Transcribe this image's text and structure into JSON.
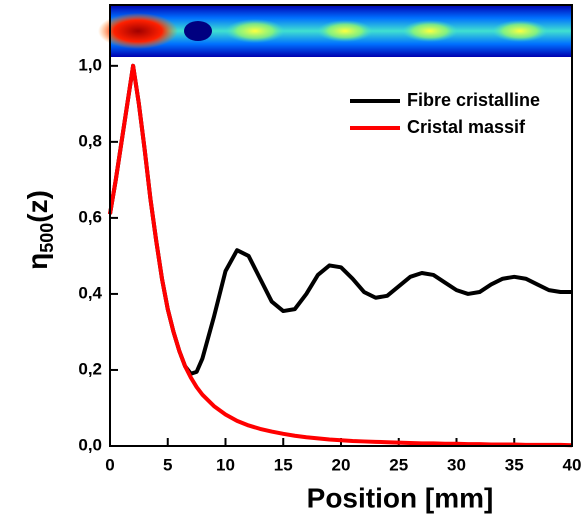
{
  "chart_data": {
    "type": "line",
    "xlabel": "Position  [mm]",
    "ylabel_symbol": "η",
    "ylabel_subscript": "500",
    "ylabel_suffix": "(z)",
    "x": [
      0,
      0.5,
      1,
      1.5,
      2,
      2.5,
      3,
      3.5,
      4,
      4.5,
      5,
      5.5,
      6,
      6.5,
      7,
      7.5,
      8,
      9,
      10,
      11,
      12,
      13,
      14,
      15,
      16,
      17,
      18,
      19,
      20,
      21,
      22,
      23,
      24,
      25,
      26,
      27,
      28,
      29,
      30,
      31,
      32,
      33,
      34,
      35,
      36,
      37,
      38,
      39,
      40
    ],
    "series": [
      {
        "name": "Fibre cristalline",
        "color": "#000000",
        "values": [
          0.61,
          0.7,
          0.8,
          0.9,
          1.0,
          0.9,
          0.78,
          0.65,
          0.54,
          0.44,
          0.36,
          0.3,
          0.25,
          0.21,
          0.19,
          0.195,
          0.23,
          0.34,
          0.46,
          0.515,
          0.5,
          0.44,
          0.38,
          0.355,
          0.36,
          0.4,
          0.45,
          0.475,
          0.47,
          0.44,
          0.405,
          0.39,
          0.395,
          0.42,
          0.445,
          0.455,
          0.45,
          0.43,
          0.41,
          0.4,
          0.405,
          0.425,
          0.44,
          0.445,
          0.44,
          0.425,
          0.41,
          0.405,
          0.405
        ]
      },
      {
        "name": "Cristal massif",
        "color": "#ff0000",
        "values": [
          0.61,
          0.7,
          0.8,
          0.9,
          1.0,
          0.9,
          0.78,
          0.65,
          0.54,
          0.44,
          0.36,
          0.3,
          0.25,
          0.21,
          0.18,
          0.155,
          0.135,
          0.105,
          0.083,
          0.066,
          0.054,
          0.045,
          0.038,
          0.032,
          0.027,
          0.023,
          0.02,
          0.017,
          0.015,
          0.013,
          0.012,
          0.011,
          0.01,
          0.009,
          0.008,
          0.007,
          0.007,
          0.006,
          0.006,
          0.005,
          0.005,
          0.004,
          0.004,
          0.004,
          0.003,
          0.003,
          0.003,
          0.003,
          0.002
        ]
      }
    ],
    "xlim": [
      0,
      40
    ],
    "xticks": [
      0,
      5,
      10,
      15,
      20,
      25,
      30,
      35,
      40
    ],
    "ylim": [
      0,
      1.16
    ],
    "yticks": [
      {
        "value": 0,
        "label": "0,0"
      },
      {
        "value": 0.2,
        "label": "0,2"
      },
      {
        "value": 0.4,
        "label": "0,4"
      },
      {
        "value": 0.6,
        "label": "0,6"
      },
      {
        "value": 0.8,
        "label": "0,8"
      },
      {
        "value": 1.0,
        "label": "1,0"
      }
    ],
    "legend": "upper right"
  }
}
